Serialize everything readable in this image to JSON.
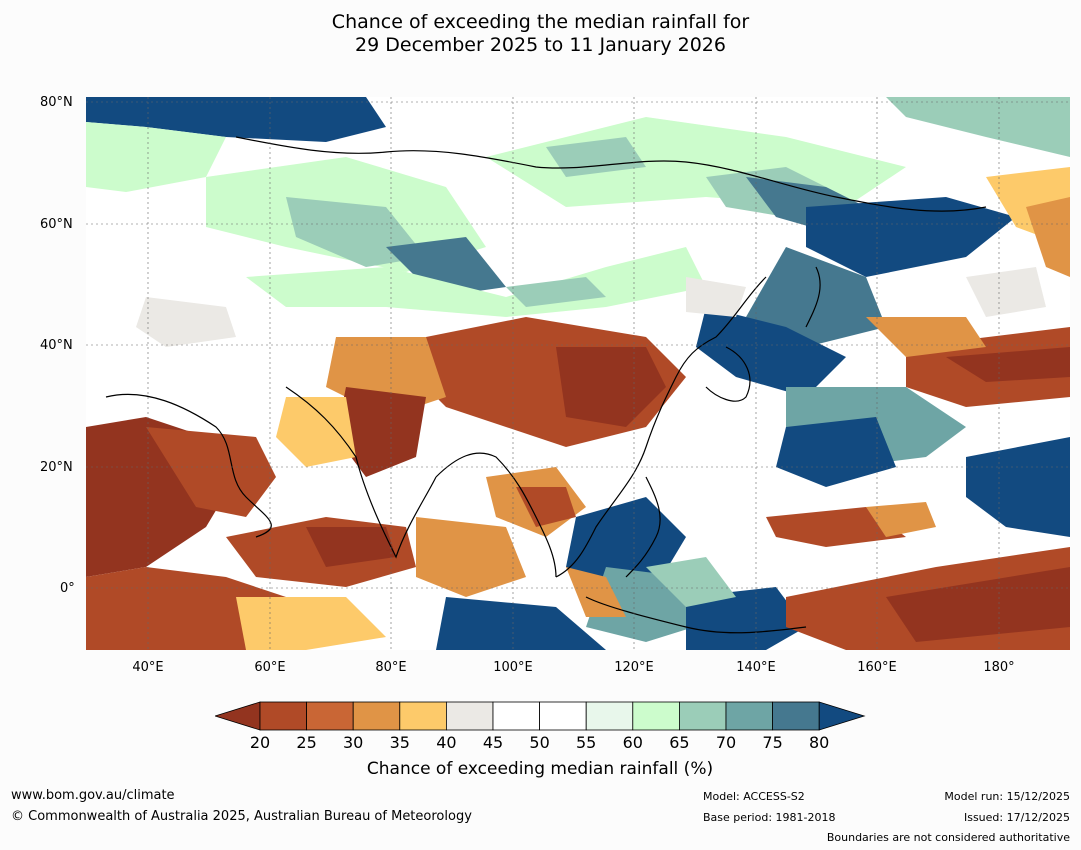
{
  "title": {
    "line1": "Chance of exceeding the median rainfall for",
    "line2": "29 December 2025 to 11 January 2026"
  },
  "axes": {
    "lat_labels": [
      "80°N",
      "60°N",
      "40°N",
      "20°N",
      "0°"
    ],
    "lon_labels": [
      "40°E",
      "60°E",
      "80°E",
      "100°E",
      "120°E",
      "140°E",
      "160°E",
      "180°"
    ]
  },
  "colorbar": {
    "ticks": [
      "20",
      "25",
      "30",
      "35",
      "40",
      "45",
      "50",
      "55",
      "60",
      "65",
      "70",
      "75",
      "80"
    ],
    "colors": [
      "#93341f",
      "#b04a27",
      "#c96635",
      "#e09446",
      "#fdca6a",
      "#ebe9e5",
      "#ffffff",
      "#ffffff",
      "#e8f7eb",
      "#ccfccc",
      "#9bcdb8",
      "#6ea5a5",
      "#45788f",
      "#124a80"
    ],
    "title": "Chance of exceeding median rainfall (%)"
  },
  "footer": {
    "website": "www.bom.gov.au/climate",
    "copyright": "© Commonwealth of Australia 2025, Australian Bureau of Meteorology",
    "model": "Model: ACCESS-S2",
    "base_period": "Base period: 1981-2018",
    "model_run": "Model run: 15/12/2025",
    "issued": "Issued: 17/12/2025",
    "disclaimer": "Boundaries are not considered authoritative"
  }
}
